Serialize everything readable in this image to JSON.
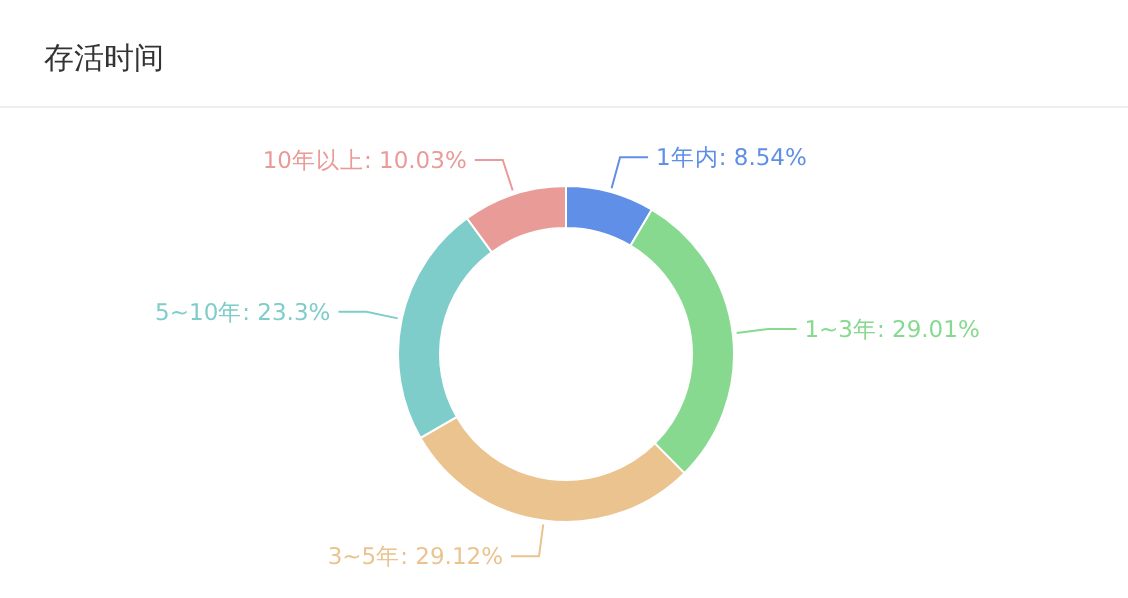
{
  "chart_data": {
    "type": "donut",
    "title": "存活时间",
    "categories": [
      "1年内",
      "1~3年",
      "3~5年",
      "5~10年",
      "10年以上"
    ],
    "values": [
      8.54,
      29.01,
      29.12,
      23.3,
      10.03
    ],
    "value_labels": [
      "8.54%",
      "29.01%",
      "29.12%",
      "23.3%",
      "10.03%"
    ],
    "colors": [
      "#5f8fe6",
      "#86d98f",
      "#eac38f",
      "#7ecdca",
      "#e99b97"
    ]
  }
}
